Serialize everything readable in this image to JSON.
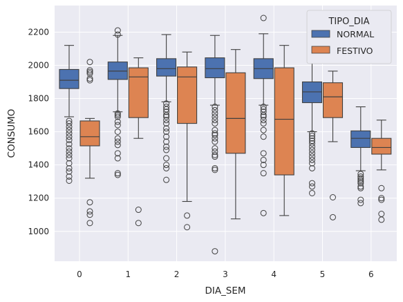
{
  "chart_data": {
    "type": "boxplot",
    "xlabel": "DIA_SEM",
    "ylabel": "CONSUMO",
    "categories": [
      "0",
      "1",
      "2",
      "3",
      "4",
      "5",
      "6"
    ],
    "ylim": [
      820,
      2360
    ],
    "yticks": [
      1000,
      1200,
      1400,
      1600,
      1800,
      2000,
      2200
    ],
    "grid": true,
    "legend": {
      "title": "TIPO_DIA",
      "placement": "top-right"
    },
    "series": [
      {
        "name": "NORMAL",
        "color": "#4c72b0",
        "boxes": [
          {
            "whisker_low": 1690,
            "q1": 1860,
            "median": 1910,
            "q3": 1975,
            "whisker_high": 2120,
            "outliers": [
              1665,
              1650,
              1630,
              1610,
              1590,
              1570,
              1550,
              1525,
              1500,
              1480,
              1460,
              1440,
              1410,
              1380,
              1360,
              1330,
              1305
            ]
          },
          {
            "whisker_low": 1720,
            "q1": 1915,
            "median": 1965,
            "q3": 2020,
            "whisker_high": 2180,
            "outliers": [
              2210,
              2185,
              1710,
              1700,
              1690,
              1660,
              1640,
              1600,
              1560,
              1540,
              1520,
              1470,
              1440,
              1350,
              1340
            ]
          },
          {
            "whisker_low": 1780,
            "q1": 1935,
            "median": 1980,
            "q3": 2040,
            "whisker_high": 2185,
            "outliers": [
              1770,
              1750,
              1735,
              1720,
              1700,
              1690,
              1670,
              1650,
              1620,
              1600,
              1570,
              1540,
              1510,
              1490,
              1440,
              1400,
              1380,
              1310
            ]
          },
          {
            "whisker_low": 1760,
            "q1": 1925,
            "median": 1980,
            "q3": 2045,
            "whisker_high": 2180,
            "outliers": [
              1750,
              1730,
              1710,
              1690,
              1670,
              1650,
              1610,
              1590,
              1580,
              1560,
              1540,
              1500,
              1480,
              1460,
              1450,
              1380,
              1370,
              880
            ]
          },
          {
            "whisker_low": 1760,
            "q1": 1920,
            "median": 1980,
            "q3": 2040,
            "whisker_high": 2190,
            "outliers": [
              2285,
              1750,
              1735,
              1720,
              1700,
              1690,
              1670,
              1650,
              1610,
              1570,
              1470,
              1430,
              1400,
              1350,
              1110
            ]
          },
          {
            "whisker_low": 1600,
            "q1": 1775,
            "median": 1840,
            "q3": 1900,
            "whisker_high": 2030,
            "outliers": [
              2060,
              1590,
              1575,
              1560,
              1545,
              1530,
              1510,
              1490,
              1470,
              1450,
              1430,
              1410,
              1380,
              1290,
              1270,
              1230
            ]
          },
          {
            "whisker_low": 1365,
            "q1": 1505,
            "median": 1560,
            "q3": 1605,
            "whisker_high": 1750,
            "outliers": [
              1345,
              1330,
              1320,
              1310,
              1300,
              1290,
              1270,
              1260,
              1190,
              1170
            ]
          }
        ]
      },
      {
        "name": "FESTIVO",
        "color": "#dd8452",
        "boxes": [
          {
            "whisker_low": 1320,
            "q1": 1515,
            "median": 1570,
            "q3": 1665,
            "whisker_high": 1680,
            "outliers": [
              2020,
              1970,
              1960,
              1950,
              1920,
              1910,
              1175,
              1120,
              1100,
              1050
            ]
          },
          {
            "whisker_low": 1560,
            "q1": 1685,
            "median": 1930,
            "q3": 1985,
            "whisker_high": 2045,
            "outliers": [
              1130,
              1050
            ]
          },
          {
            "whisker_low": 1180,
            "q1": 1650,
            "median": 1930,
            "q3": 1990,
            "whisker_high": 2080,
            "outliers": [
              1095,
              1025
            ]
          },
          {
            "whisker_low": 1075,
            "q1": 1470,
            "median": 1680,
            "q3": 1955,
            "whisker_high": 2095,
            "outliers": []
          },
          {
            "whisker_low": 1095,
            "q1": 1340,
            "median": 1675,
            "q3": 1985,
            "whisker_high": 2120,
            "outliers": []
          },
          {
            "whisker_low": 1540,
            "q1": 1685,
            "median": 1810,
            "q3": 1895,
            "whisker_high": 1965,
            "outliers": [
              1205,
              1085
            ]
          },
          {
            "whisker_low": 1370,
            "q1": 1465,
            "median": 1505,
            "q3": 1560,
            "whisker_high": 1670,
            "outliers": [
              1260,
              1200,
              1190,
              1105,
              1070
            ]
          }
        ]
      }
    ]
  }
}
